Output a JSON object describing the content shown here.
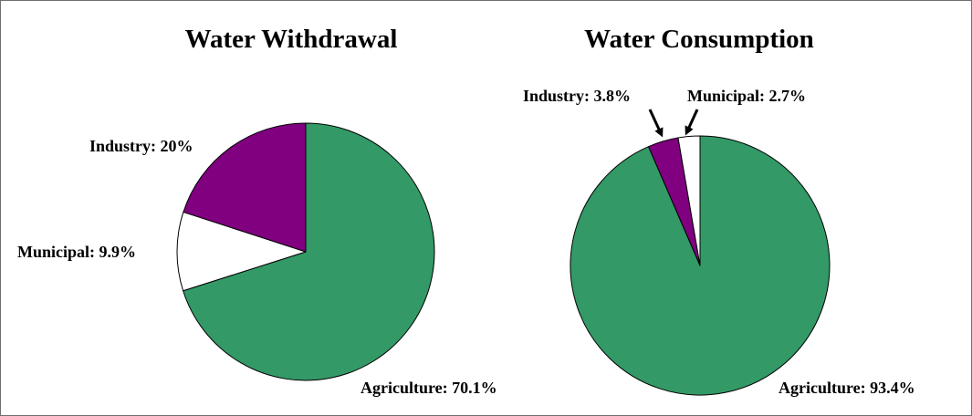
{
  "chart_data": [
    {
      "type": "pie",
      "title": "Water Withdrawal",
      "slices": [
        {
          "name": "Agriculture",
          "value": 70.1,
          "label": "Agriculture: 70.1%",
          "color": "#339966"
        },
        {
          "name": "Municipal",
          "value": 9.9,
          "label": "Municipal: 9.9%",
          "color": "#ffffff"
        },
        {
          "name": "Industry",
          "value": 20,
          "label": "Industry: 20%",
          "color": "#800080"
        }
      ],
      "start_angle_deg": 0,
      "direction": "clockwise"
    },
    {
      "type": "pie",
      "title": "Water Consumption",
      "slices": [
        {
          "name": "Agriculture",
          "value": 93.4,
          "label": "Agriculture: 93.4%",
          "color": "#339966"
        },
        {
          "name": "Industry",
          "value": 3.8,
          "label": "Industry: 3.8%",
          "color": "#800080"
        },
        {
          "name": "Municipal",
          "value": 2.7,
          "label": "Municipal: 2.7%",
          "color": "#ffffff"
        }
      ],
      "start_angle_deg": 0,
      "direction": "clockwise",
      "callout_arrows": [
        "Industry",
        "Municipal"
      ]
    }
  ],
  "style": {
    "slice_outline": "#000000",
    "frame_border": "#6f6f6f"
  }
}
